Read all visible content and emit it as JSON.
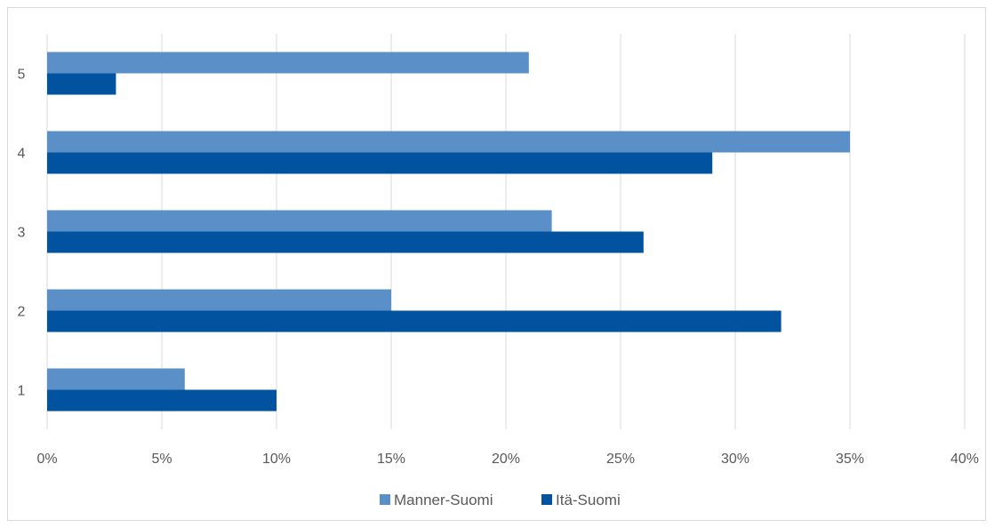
{
  "chart_data": {
    "type": "bar",
    "orientation": "horizontal",
    "categories": [
      "1",
      "2",
      "3",
      "4",
      "5"
    ],
    "series": [
      {
        "name": "Manner-Suomi",
        "color": "#5b8fc7",
        "values": [
          6,
          15,
          22,
          35,
          21
        ]
      },
      {
        "name": "Itä-Suomi",
        "color": "#0153a0",
        "values": [
          10,
          32,
          26,
          29,
          3
        ]
      }
    ],
    "x_ticks": [
      "0%",
      "5%",
      "10%",
      "15%",
      "20%",
      "25%",
      "30%",
      "35%",
      "40%"
    ],
    "xlim": [
      0,
      40
    ],
    "grid": true,
    "legend_position": "bottom"
  }
}
